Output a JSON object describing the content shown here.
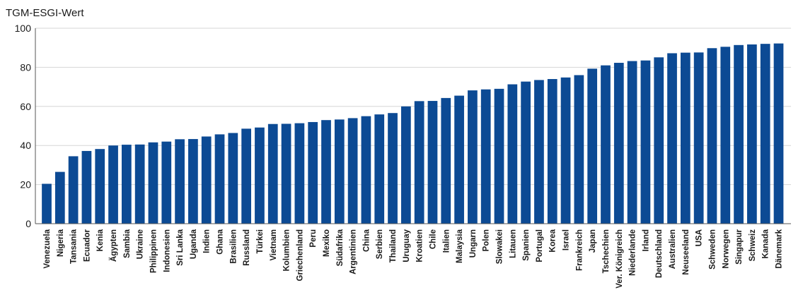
{
  "chart_data": {
    "type": "bar",
    "ylabel": "TGM-ESGI-Wert",
    "xlabel": "",
    "ylim": [
      0,
      100
    ],
    "yticks": [
      0,
      20,
      40,
      60,
      80,
      100
    ],
    "grid": true,
    "bar_color": "#0c4a94",
    "categories": [
      "Venezuela",
      "Nigeria",
      "Tansania",
      "Ecuador",
      "Kenia",
      "Ägypten",
      "Sambia",
      "Ukraine",
      "Philippinen",
      "Indonesien",
      "Sri Lanka",
      "Uganda",
      "Indien",
      "Ghana",
      "Brasilien",
      "Russland",
      "Türkei",
      "Vietnam",
      "Kolumbien",
      "Griechenland",
      "Peru",
      "Mexiko",
      "Südafrika",
      "Argentinien",
      "China",
      "Serbien",
      "Thailand",
      "Uruguay",
      "Kroatien",
      "Chile",
      "Italien",
      "Malaysia",
      "Ungarn",
      "Polen",
      "Slowakei",
      "Litauen",
      "Spanien",
      "Portugal",
      "Korea",
      "Israel",
      "Frankreich",
      "Japan",
      "Tschechien",
      "Ver. Königreich",
      "Niederlande",
      "Irland",
      "Deutschland",
      "Australien",
      "Neuseeland",
      "USA",
      "Schweden",
      "Norwegen",
      "Singapur",
      "Schweiz",
      "Kanada",
      "Dänemark"
    ],
    "values": [
      20.4,
      26.5,
      34.5,
      37.2,
      38.2,
      40.0,
      40.4,
      40.5,
      41.6,
      42.0,
      43.2,
      43.3,
      44.6,
      45.7,
      46.4,
      48.6,
      49.2,
      51.0,
      51.1,
      51.4,
      52.0,
      53.0,
      53.3,
      54.0,
      55.0,
      55.9,
      56.6,
      60.0,
      62.7,
      62.8,
      64.3,
      65.5,
      68.2,
      68.7,
      69.0,
      71.3,
      72.7,
      73.5,
      74.0,
      74.8,
      76.0,
      79.3,
      81.0,
      82.3,
      83.2,
      83.5,
      85.1,
      87.2,
      87.5,
      87.6,
      89.8,
      90.5,
      91.4,
      91.7,
      92.0,
      92.2
    ]
  }
}
